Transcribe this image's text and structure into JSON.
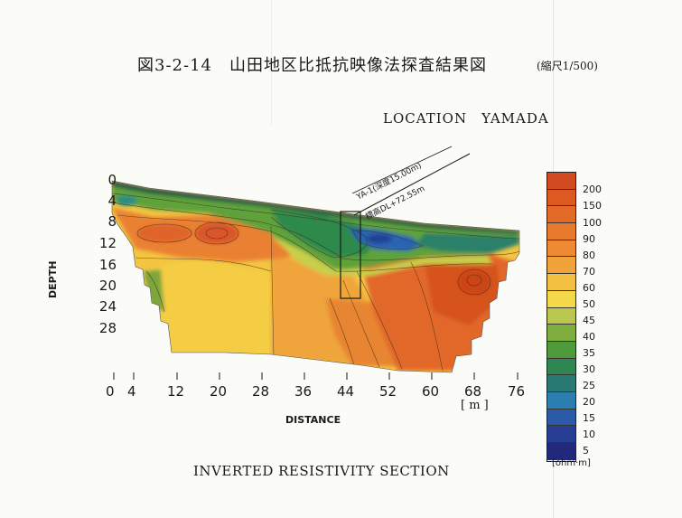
{
  "title": "図3-2-14　山田地区比抵抗映像法探査結果図",
  "scale_note": "(縮尺1/500)",
  "location": "LOCATION　YAMADA",
  "caption": "INVERTED RESISTIVITY SECTION",
  "axes": {
    "y_label": "DEPTH",
    "y_ticks": [
      "0",
      "4",
      "8",
      "12",
      "16",
      "20",
      "24",
      "28"
    ],
    "x_label": "DISTANCE",
    "x_ticks": [
      "0",
      "4",
      "12",
      "20",
      "28",
      "36",
      "44",
      "52",
      "60",
      "68",
      "76"
    ],
    "x_unit": "[ m ]"
  },
  "annotation": {
    "borehole": "YA-1(深度15.00m)",
    "elevation": "標高DL+72.55m"
  },
  "colorbar": {
    "labels": [
      "200",
      "150",
      "100",
      "90",
      "80",
      "70",
      "60",
      "50",
      "45",
      "40",
      "35",
      "30",
      "25",
      "20",
      "15",
      "10",
      "5"
    ],
    "unit": "[ohm·m]",
    "colors": [
      "#d24a1f",
      "#dc5a22",
      "#e36a27",
      "#e9792c",
      "#ee8a32",
      "#f1a33a",
      "#f4c041",
      "#f2d84a",
      "#b9c74e",
      "#7fae3e",
      "#4f9a3a",
      "#2f8650",
      "#2a7a74",
      "#2a7fb0",
      "#2a5aa8",
      "#283e92",
      "#22287a"
    ]
  }
}
